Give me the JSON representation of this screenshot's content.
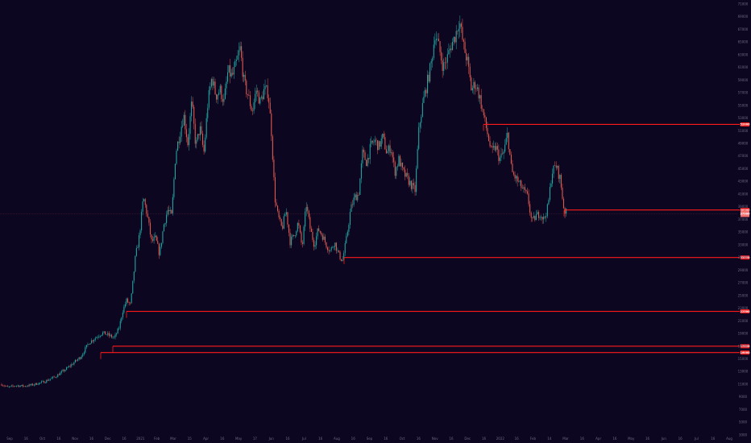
{
  "chart_data": {
    "type": "candlestick",
    "title": "",
    "xlabel": "",
    "ylabel": "",
    "colors": {
      "background": "#0c0620",
      "up": "#22a6a0",
      "down": "#e0594e",
      "level_line": "#ff1a1a",
      "current_price_marker": "#f07070",
      "axis_text": "#6f6a85"
    },
    "x_ticks": [
      "Sep",
      "16",
      "Oct",
      "16",
      "Nov",
      "16",
      "Dec",
      "16",
      "2021",
      "Feb",
      "Mar",
      "15",
      "Apr",
      "16",
      "May",
      "17",
      "Jun",
      "16",
      "Jul",
      "16",
      "Aug",
      "16",
      "Sep",
      "16",
      "Oct",
      "16",
      "Nov",
      "16",
      "Dec",
      "16",
      "2022",
      "16",
      "Feb",
      "14",
      "Mar",
      "16",
      "Apr",
      "16",
      "May",
      "16",
      "Jun",
      "16",
      "Jul",
      "16",
      "Aug"
    ],
    "y_range": [
      3000,
      71000
    ],
    "price_series": [
      [
        0,
        11100
      ],
      [
        10,
        10500
      ],
      [
        20,
        10800
      ],
      [
        30,
        10700
      ],
      [
        40,
        10900
      ],
      [
        55,
        11400
      ],
      [
        70,
        12300
      ],
      [
        85,
        13700
      ],
      [
        100,
        15300
      ],
      [
        110,
        17500
      ],
      [
        120,
        18500
      ],
      [
        127,
        19100
      ],
      [
        132,
        18900
      ],
      [
        137,
        18600
      ],
      [
        142,
        18300
      ],
      [
        148,
        20000
      ],
      [
        152,
        22500
      ],
      [
        157,
        24200
      ],
      [
        162,
        23500
      ],
      [
        168,
        31000
      ],
      [
        173,
        34500
      ],
      [
        178,
        40500
      ],
      [
        183,
        37500
      ],
      [
        188,
        33500
      ],
      [
        193,
        34000
      ],
      [
        198,
        31500
      ],
      [
        203,
        36000
      ],
      [
        208,
        38500
      ],
      [
        213,
        37500
      ],
      [
        218,
        47500
      ],
      [
        223,
        50500
      ],
      [
        228,
        53500
      ],
      [
        233,
        49000
      ],
      [
        238,
        55500
      ],
      [
        243,
        48500
      ],
      [
        248,
        51500
      ],
      [
        253,
        47500
      ],
      [
        258,
        55500
      ],
      [
        263,
        59500
      ],
      [
        268,
        56500
      ],
      [
        273,
        57500
      ],
      [
        278,
        55500
      ],
      [
        283,
        60500
      ],
      [
        288,
        59500
      ],
      [
        293,
        61500
      ],
      [
        298,
        64000
      ],
      [
        303,
        58500
      ],
      [
        308,
        56500
      ],
      [
        313,
        54000
      ],
      [
        318,
        57500
      ],
      [
        323,
        55500
      ],
      [
        328,
        57500
      ],
      [
        333,
        57000
      ],
      [
        337,
        50500
      ],
      [
        341,
        40500
      ],
      [
        345,
        37500
      ],
      [
        350,
        35500
      ],
      [
        355,
        38500
      ],
      [
        360,
        33500
      ],
      [
        365,
        34500
      ],
      [
        370,
        36500
      ],
      [
        375,
        32500
      ],
      [
        380,
        39500
      ],
      [
        385,
        35500
      ],
      [
        390,
        33000
      ],
      [
        395,
        35500
      ],
      [
        400,
        34500
      ],
      [
        405,
        33000
      ],
      [
        410,
        32000
      ],
      [
        415,
        33500
      ],
      [
        420,
        31500
      ],
      [
        425,
        30500
      ],
      [
        430,
        34000
      ],
      [
        435,
        38500
      ],
      [
        440,
        40500
      ],
      [
        445,
        41000
      ],
      [
        450,
        47500
      ],
      [
        455,
        46000
      ],
      [
        460,
        48500
      ],
      [
        465,
        49500
      ],
      [
        470,
        48500
      ],
      [
        475,
        50000
      ],
      [
        480,
        47500
      ],
      [
        485,
        48500
      ],
      [
        490,
        44500
      ],
      [
        495,
        46500
      ],
      [
        500,
        44500
      ],
      [
        505,
        43500
      ],
      [
        510,
        42500
      ],
      [
        515,
        41500
      ],
      [
        520,
        51500
      ],
      [
        525,
        55500
      ],
      [
        530,
        58500
      ],
      [
        535,
        61500
      ],
      [
        540,
        66500
      ],
      [
        545,
        64000
      ],
      [
        550,
        61000
      ],
      [
        555,
        62500
      ],
      [
        560,
        64500
      ],
      [
        565,
        66000
      ],
      [
        570,
        68500
      ],
      [
        575,
        64500
      ],
      [
        580,
        62000
      ],
      [
        585,
        57500
      ],
      [
        590,
        58500
      ],
      [
        595,
        56500
      ],
      [
        600,
        53500
      ],
      [
        605,
        50500
      ],
      [
        610,
        47500
      ],
      [
        615,
        48500
      ],
      [
        620,
        46500
      ],
      [
        625,
        47500
      ],
      [
        630,
        50500
      ],
      [
        635,
        44500
      ],
      [
        640,
        43500
      ],
      [
        645,
        42500
      ],
      [
        650,
        41500
      ],
      [
        655,
        40500
      ],
      [
        660,
        36500
      ],
      [
        665,
        37500
      ],
      [
        670,
        38000
      ],
      [
        675,
        37000
      ],
      [
        680,
        39000
      ],
      [
        685,
        44500
      ],
      [
        690,
        45500
      ],
      [
        695,
        43500
      ],
      [
        700,
        38500
      ],
      [
        703,
        38000
      ]
    ],
    "levels": [
      {
        "price": 52000,
        "label": "52000",
        "start_x": 600
      },
      {
        "price": 38500,
        "label": "38500",
        "start_x": 700
      },
      {
        "price": 31000,
        "label": "31000",
        "start_x": 427
      },
      {
        "price": 22500,
        "label": "22500",
        "start_x": 157
      },
      {
        "price": 17000,
        "label": "17000",
        "start_x": 140
      },
      {
        "price": 16000,
        "label": "16000",
        "start_x": 125
      }
    ],
    "current_price": {
      "price": 37900,
      "label": "37900"
    }
  }
}
